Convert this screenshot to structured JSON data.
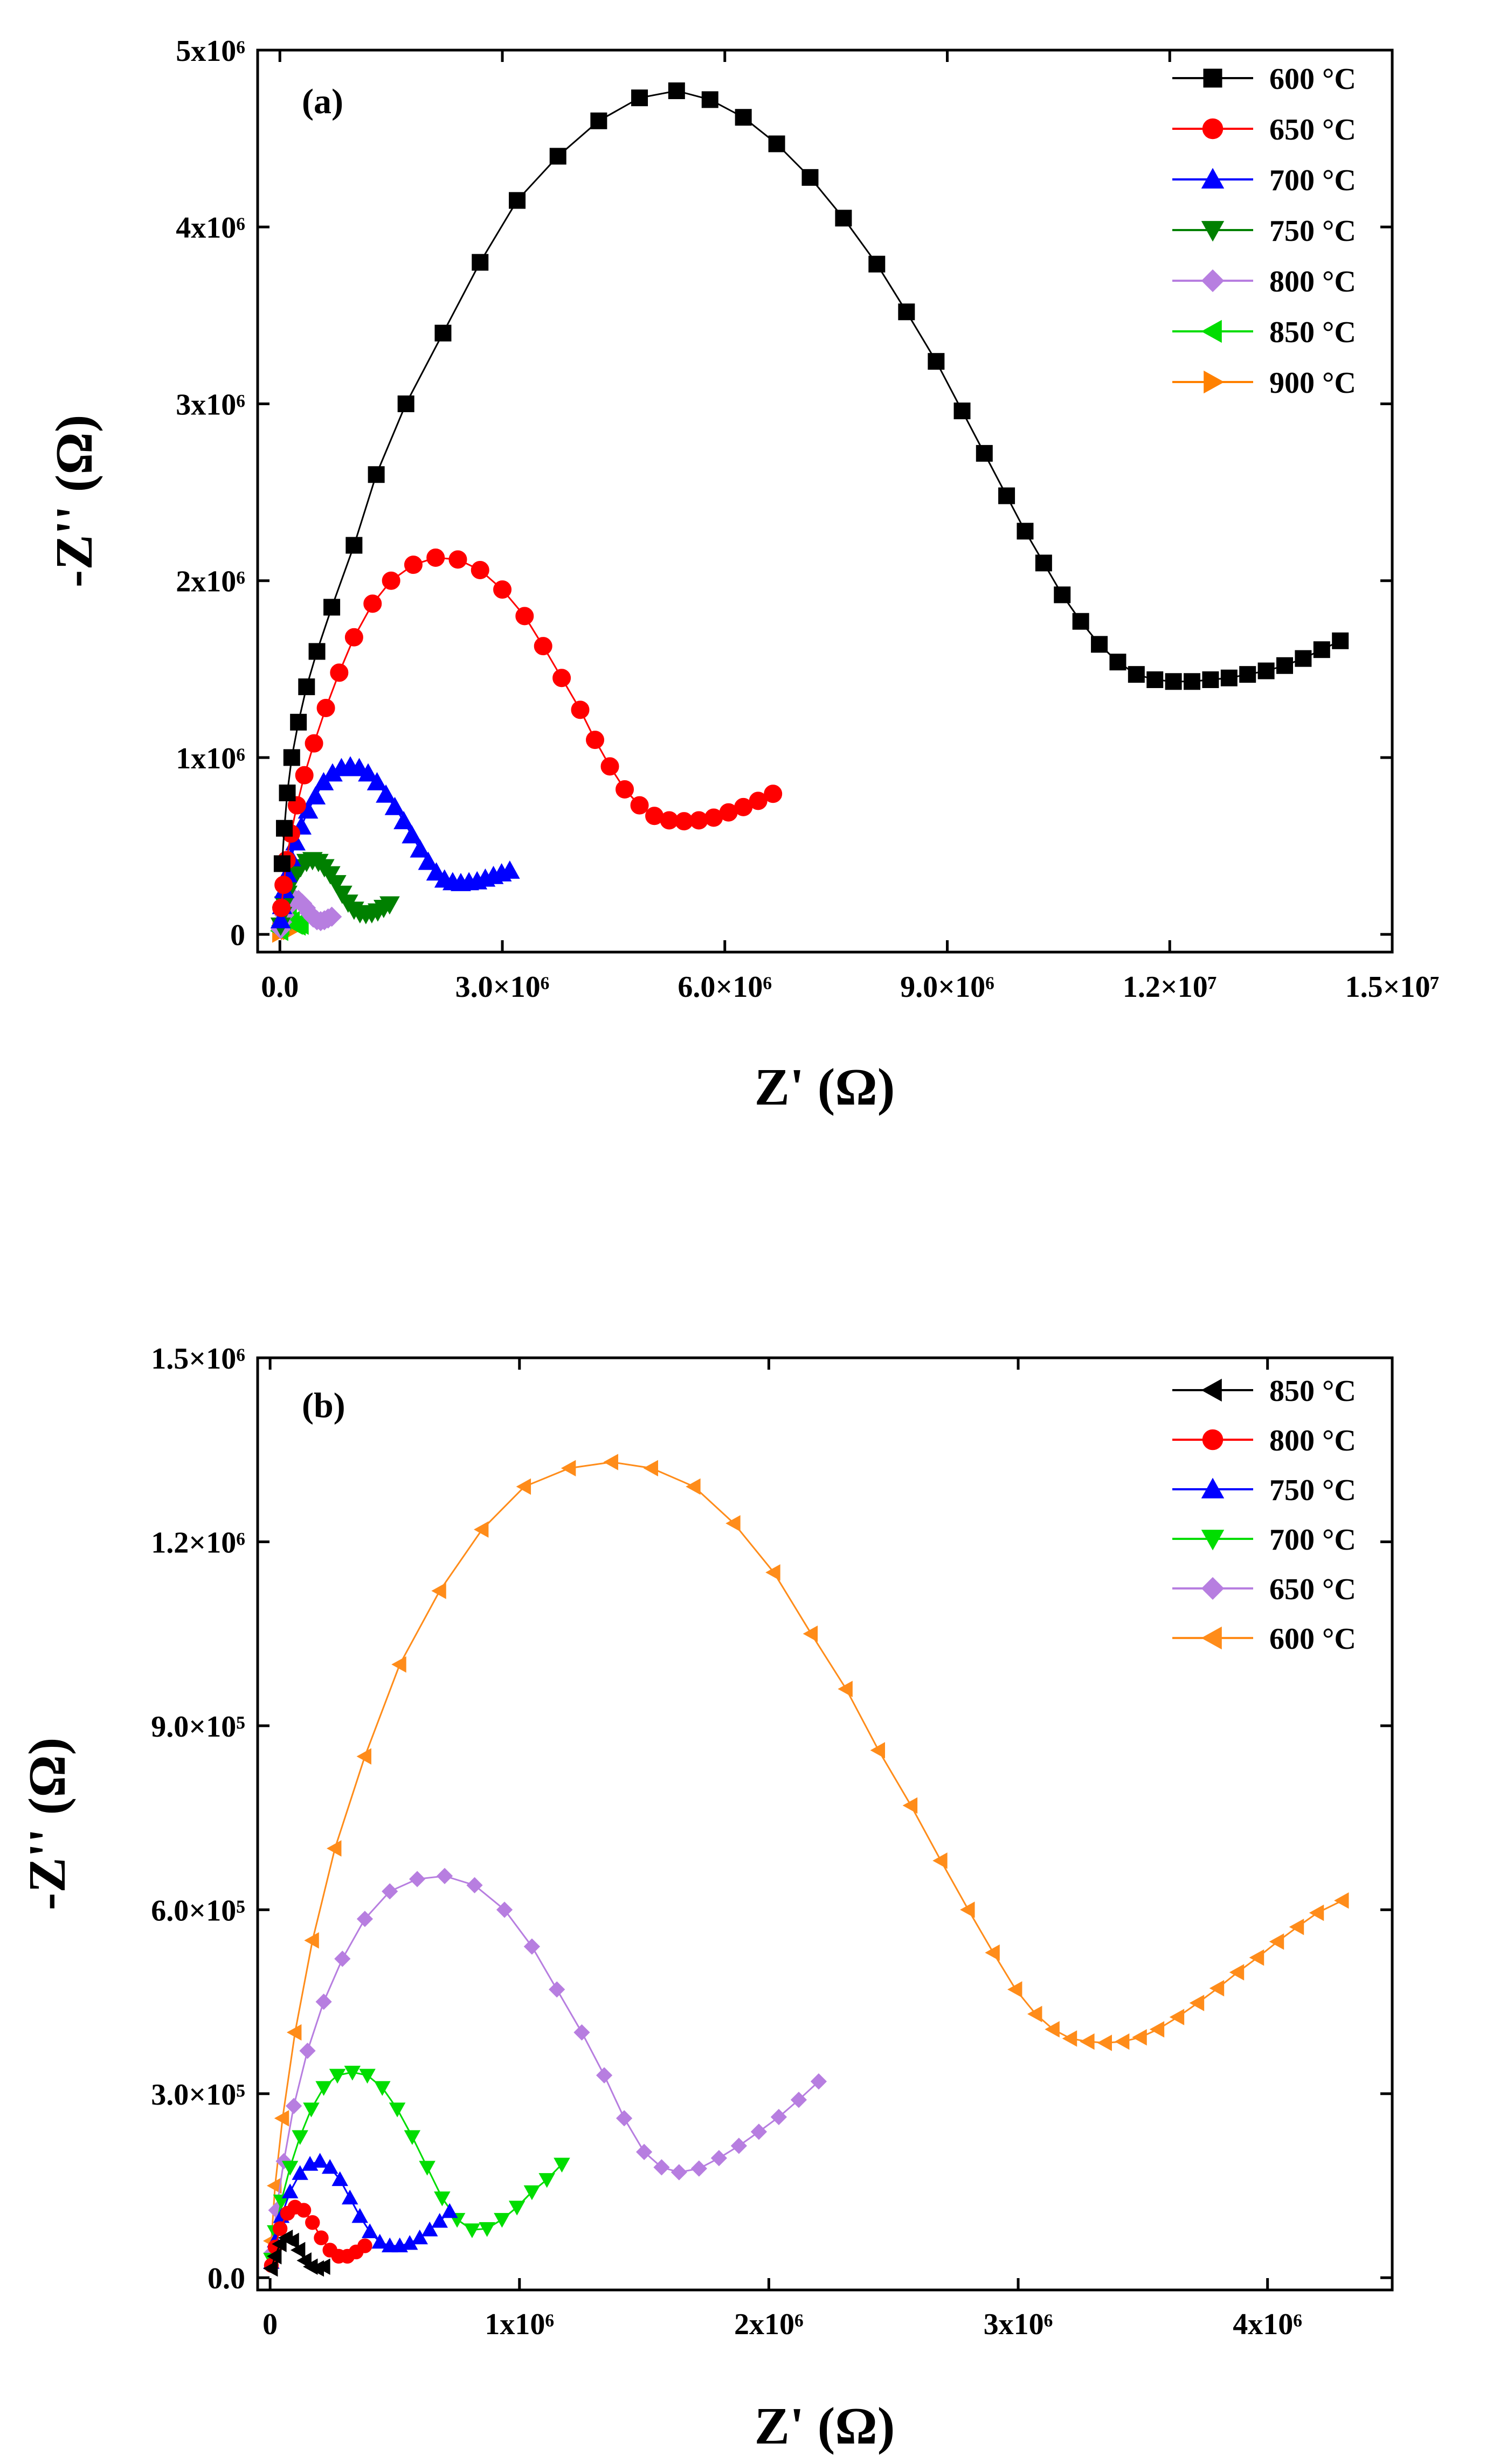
{
  "chart_data": [
    {
      "type": "scatter",
      "panel_label": "(a)",
      "xlabel": "Z' (Ω)",
      "ylabel": "-Z'' (Ω)",
      "xlim": [
        -300000,
        15000000
      ],
      "ylim": [
        -100000,
        5000000
      ],
      "x_ticks": [
        {
          "v": 0,
          "label": "0.0"
        },
        {
          "v": 3000000,
          "label": "3.0×10⁶"
        },
        {
          "v": 6000000,
          "label": "6.0×10⁶"
        },
        {
          "v": 9000000,
          "label": "9.0×10⁶"
        },
        {
          "v": 12000000,
          "label": "1.2×10⁷"
        },
        {
          "v": 15000000,
          "label": "1.5×10⁷"
        }
      ],
      "y_ticks": [
        {
          "v": 0,
          "label": "0"
        },
        {
          "v": 1000000,
          "label": "1x10⁶"
        },
        {
          "v": 2000000,
          "label": "2x10⁶"
        },
        {
          "v": 3000000,
          "label": "3x10⁶"
        },
        {
          "v": 4000000,
          "label": "4x10⁶"
        },
        {
          "v": 5000000,
          "label": "5x10⁶"
        }
      ],
      "legend_position": "top-right",
      "series": [
        {
          "name": "600 °C",
          "color": "#000000",
          "marker": "square",
          "x": [
            30000,
            60000,
            100000,
            160000,
            250000,
            360000,
            500000,
            700000,
            1000000,
            1300000,
            1700000,
            2200000,
            2700000,
            3200000,
            3750000,
            4300000,
            4850000,
            5350000,
            5800000,
            6250000,
            6700000,
            7150000,
            7600000,
            8050000,
            8450000,
            8850000,
            9200000,
            9500000,
            9800000,
            10050000,
            10300000,
            10550000,
            10800000,
            11050000,
            11300000,
            11550000,
            11800000,
            12050000,
            12300000,
            12550000,
            12800000,
            13050000,
            13300000,
            13550000,
            13800000,
            14050000,
            14300000
          ],
          "y": [
            400000,
            600000,
            800000,
            1000000,
            1200000,
            1400000,
            1600000,
            1850000,
            2200000,
            2600000,
            3000000,
            3400000,
            3800000,
            4150000,
            4400000,
            4600000,
            4730000,
            4770000,
            4720000,
            4620000,
            4470000,
            4280000,
            4050000,
            3790000,
            3520000,
            3240000,
            2960000,
            2720000,
            2480000,
            2280000,
            2100000,
            1920000,
            1770000,
            1640000,
            1540000,
            1470000,
            1440000,
            1430000,
            1430000,
            1440000,
            1450000,
            1470000,
            1490000,
            1520000,
            1560000,
            1610000,
            1660000
          ]
        },
        {
          "name": "650 °C",
          "color": "#ff0000",
          "marker": "circle",
          "x": [
            20000,
            50000,
            90000,
            150000,
            230000,
            330000,
            460000,
            620000,
            800000,
            1000000,
            1250000,
            1500000,
            1800000,
            2100000,
            2400000,
            2700000,
            3000000,
            3300000,
            3550000,
            3800000,
            4050000,
            4250000,
            4450000,
            4650000,
            4850000,
            5050000,
            5250000,
            5450000,
            5650000,
            5850000,
            6050000,
            6250000,
            6450000,
            6650000
          ],
          "y": [
            150000,
            280000,
            420000,
            570000,
            730000,
            900000,
            1080000,
            1280000,
            1480000,
            1680000,
            1870000,
            2000000,
            2090000,
            2130000,
            2120000,
            2060000,
            1950000,
            1800000,
            1630000,
            1450000,
            1270000,
            1100000,
            950000,
            820000,
            730000,
            670000,
            645000,
            640000,
            645000,
            660000,
            690000,
            720000,
            755000,
            795000
          ]
        },
        {
          "name": "700 °C",
          "color": "#0000ff",
          "marker": "triangle-up",
          "x": [
            10000,
            30000,
            60000,
            100000,
            150000,
            210000,
            290000,
            380000,
            480000,
            590000,
            710000,
            830000,
            950000,
            1070000,
            1190000,
            1310000,
            1430000,
            1550000,
            1670000,
            1780000,
            1890000,
            2000000,
            2110000,
            2220000,
            2330000,
            2440000,
            2550000,
            2660000,
            2770000,
            2880000,
            2990000,
            3100000
          ],
          "y": [
            80000,
            160000,
            250000,
            340000,
            430000,
            520000,
            610000,
            700000,
            780000,
            860000,
            910000,
            940000,
            950000,
            940000,
            910000,
            860000,
            790000,
            720000,
            640000,
            560000,
            480000,
            410000,
            350000,
            310000,
            295000,
            290000,
            295000,
            300000,
            315000,
            330000,
            345000,
            360000
          ]
        },
        {
          "name": "750 °C",
          "color": "#008000",
          "marker": "triangle-down",
          "x": [
            10000,
            30000,
            60000,
            100000,
            150000,
            210000,
            280000,
            360000,
            440000,
            520000,
            600000,
            680000,
            760000,
            840000,
            920000,
            1000000,
            1080000,
            1160000,
            1240000,
            1320000,
            1400000,
            1480000
          ],
          "y": [
            50000,
            110000,
            170000,
            230000,
            290000,
            340000,
            380000,
            410000,
            420000,
            410000,
            380000,
            340000,
            290000,
            230000,
            180000,
            140000,
            120000,
            115000,
            120000,
            130000,
            150000,
            170000
          ]
        },
        {
          "name": "800 °C",
          "color": "#b77ee0",
          "marker": "diamond",
          "x": [
            10000,
            30000,
            60000,
            100000,
            150000,
            200000,
            250000,
            300000,
            350000,
            400000,
            450000,
            500000,
            550000,
            600000,
            650000,
            700000
          ],
          "y": [
            30000,
            70000,
            110000,
            150000,
            180000,
            200000,
            195000,
            175000,
            150000,
            120000,
            95000,
            80000,
            75000,
            80000,
            90000,
            100000
          ]
        },
        {
          "name": "850 °C",
          "color": "#00dd00",
          "marker": "triangle-left",
          "x": [
            5000,
            20000,
            45000,
            80000,
            120000,
            160000,
            200000,
            240000,
            280000
          ],
          "y": [
            20000,
            50000,
            80000,
            100000,
            95000,
            75000,
            55000,
            50000,
            55000
          ]
        },
        {
          "name": "900 °C",
          "color": "#ff8000",
          "marker": "triangle-right",
          "x": [
            5000,
            15000,
            35000,
            60000,
            90000,
            120000,
            150000
          ],
          "y": [
            10000,
            25000,
            40000,
            45000,
            35000,
            25000,
            25000
          ]
        }
      ]
    },
    {
      "type": "scatter",
      "panel_label": "(b)",
      "xlabel": "Z' (Ω)",
      "ylabel": "-Z'' (Ω)",
      "xlim": [
        -50000,
        4500000
      ],
      "ylim": [
        -20000,
        1500000
      ],
      "x_ticks": [
        {
          "v": 0,
          "label": "0"
        },
        {
          "v": 1000000,
          "label": "1x10⁶"
        },
        {
          "v": 2000000,
          "label": "2x10⁶"
        },
        {
          "v": 3000000,
          "label": "3x10⁶"
        },
        {
          "v": 4000000,
          "label": "4x10⁶"
        }
      ],
      "y_ticks": [
        {
          "v": 0,
          "label": "0.0"
        },
        {
          "v": 300000,
          "label": "3.0×10⁵"
        },
        {
          "v": 600000,
          "label": "6.0×10⁵"
        },
        {
          "v": 900000,
          "label": "9.0×10⁵"
        },
        {
          "v": 1200000,
          "label": "1.2×10⁶"
        },
        {
          "v": 1500000,
          "label": "1.5×10⁶"
        }
      ],
      "legend_position": "top-right",
      "series": [
        {
          "name": "850 °C",
          "color": "#000000",
          "marker": "triangle-left",
          "x": [
            5000,
            20000,
            40000,
            65000,
            90000,
            115000,
            140000,
            165000,
            190000,
            215000
          ],
          "y": [
            15000,
            35000,
            55000,
            65000,
            60000,
            45000,
            28000,
            18000,
            15000,
            18000
          ]
        },
        {
          "name": "800 °C",
          "color": "#ff0000",
          "marker": "circle",
          "x": [
            5000,
            20000,
            40000,
            70000,
            100000,
            135000,
            170000,
            205000,
            240000,
            275000,
            310000,
            345000,
            380000
          ],
          "y": [
            20000,
            50000,
            80000,
            105000,
            115000,
            110000,
            90000,
            65000,
            45000,
            35000,
            35000,
            42000,
            52000
          ]
        },
        {
          "name": "750 °C",
          "color": "#0000ff",
          "marker": "triangle-up",
          "x": [
            5000,
            20000,
            45000,
            80000,
            120000,
            160000,
            200000,
            240000,
            280000,
            320000,
            360000,
            400000,
            440000,
            480000,
            520000,
            560000,
            600000,
            640000,
            680000,
            720000
          ],
          "y": [
            25000,
            60000,
            100000,
            140000,
            170000,
            185000,
            190000,
            180000,
            160000,
            130000,
            100000,
            75000,
            58000,
            52000,
            52000,
            56000,
            65000,
            78000,
            92000,
            108000
          ]
        },
        {
          "name": "700 °C",
          "color": "#00dd00",
          "marker": "triangle-down",
          "x": [
            5000,
            20000,
            45000,
            80000,
            120000,
            165000,
            215000,
            270000,
            330000,
            390000,
            450000,
            510000,
            570000,
            630000,
            690000,
            750000,
            810000,
            870000,
            930000,
            990000,
            1050000,
            1110000,
            1170000
          ],
          "y": [
            30000,
            75000,
            125000,
            180000,
            230000,
            275000,
            310000,
            330000,
            335000,
            330000,
            310000,
            275000,
            230000,
            180000,
            130000,
            95000,
            78000,
            80000,
            95000,
            115000,
            140000,
            160000,
            185000
          ]
        },
        {
          "name": "650 °C",
          "color": "#b77ee0",
          "marker": "diamond",
          "x": [
            5000,
            25000,
            55000,
            95000,
            150000,
            215000,
            290000,
            380000,
            480000,
            590000,
            700000,
            820000,
            940000,
            1050000,
            1150000,
            1250000,
            1340000,
            1420000,
            1500000,
            1570000,
            1640000,
            1720000,
            1800000,
            1880000,
            1960000,
            2040000,
            2120000,
            2200000
          ],
          "y": [
            40000,
            110000,
            190000,
            280000,
            370000,
            450000,
            520000,
            585000,
            630000,
            650000,
            655000,
            640000,
            600000,
            540000,
            470000,
            400000,
            330000,
            260000,
            205000,
            180000,
            172000,
            178000,
            195000,
            215000,
            238000,
            262000,
            290000,
            320000
          ]
        },
        {
          "name": "600 °C",
          "color": "#ff8c1a",
          "marker": "triangle-left",
          "x": [
            5000,
            20000,
            50000,
            100000,
            170000,
            260000,
            380000,
            520000,
            680000,
            850000,
            1020000,
            1200000,
            1370000,
            1530000,
            1700000,
            1860000,
            2020000,
            2170000,
            2310000,
            2440000,
            2570000,
            2690000,
            2800000,
            2900000,
            2990000,
            3070000,
            3140000,
            3210000,
            3280000,
            3350000,
            3420000,
            3490000,
            3560000,
            3640000,
            3720000,
            3800000,
            3880000,
            3960000,
            4040000,
            4120000,
            4200000,
            4300000
          ],
          "y": [
            60000,
            150000,
            260000,
            400000,
            550000,
            700000,
            850000,
            1000000,
            1120000,
            1220000,
            1290000,
            1320000,
            1330000,
            1320000,
            1290000,
            1230000,
            1150000,
            1050000,
            960000,
            860000,
            770000,
            680000,
            600000,
            530000,
            470000,
            430000,
            405000,
            390000,
            385000,
            383000,
            385000,
            392000,
            405000,
            425000,
            448000,
            472000,
            498000,
            522000,
            548000,
            572000,
            595000,
            615000
          ]
        }
      ]
    }
  ]
}
